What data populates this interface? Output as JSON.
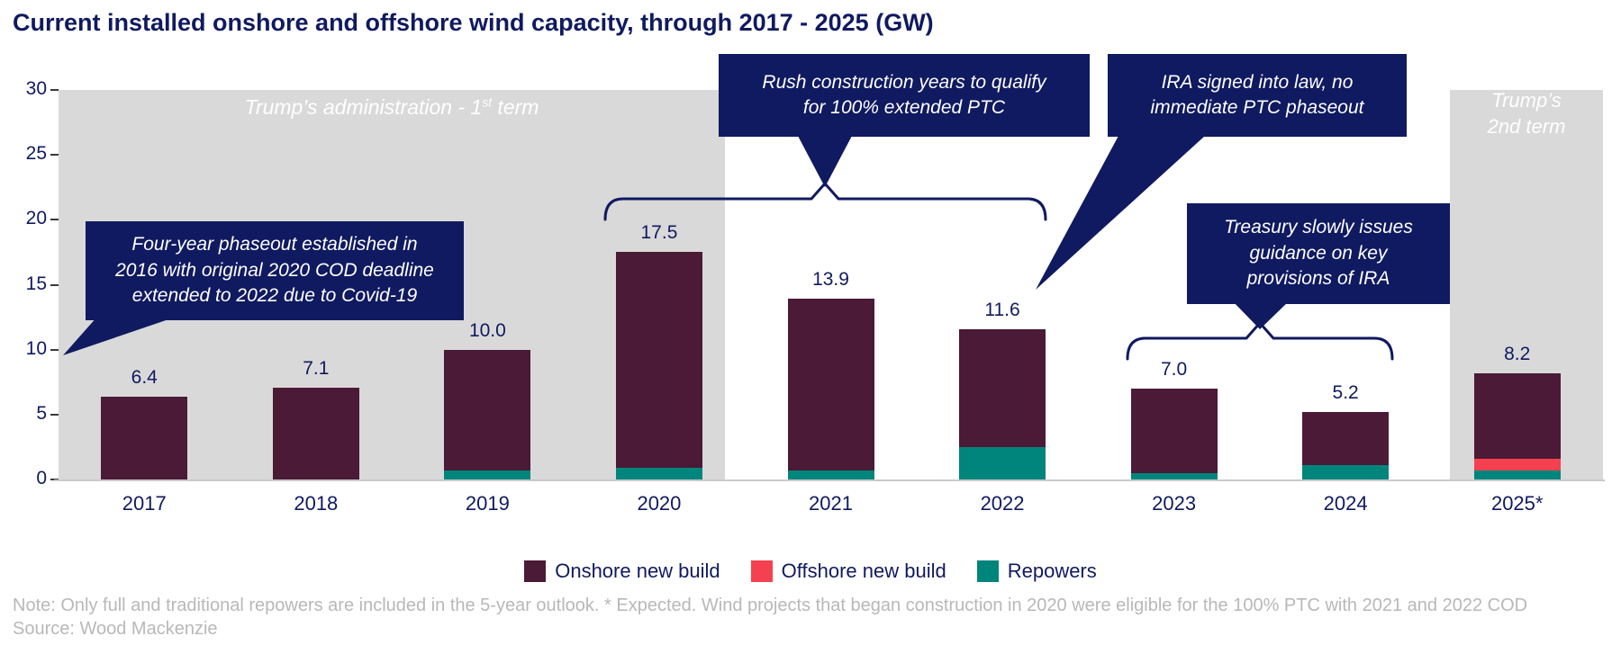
{
  "title": "Current installed onshore and offshore wind capacity, through 2017 - 2025 (GW)",
  "colors": {
    "navy": "#101a60",
    "onshore": "#4b1a36",
    "offshore": "#f5414f",
    "repowers": "#00857c",
    "band_gray": "#d9d9d9",
    "note_gray": "#b8b8b8",
    "baseline_gray": "#c9c9c9"
  },
  "bands": {
    "first_term": {
      "pre": "Trump’s administration - 1",
      "sup": "st",
      "post": " term"
    },
    "second_term": {
      "lines": [
        "Trump’s",
        "2nd term"
      ]
    }
  },
  "annotations": {
    "phaseout": {
      "lines": [
        "Four-year phaseout established in",
        "2016 with original 2020 COD deadline",
        "extended to 2022 due to Covid-19"
      ]
    },
    "rush": {
      "lines": [
        "Rush construction years to qualify",
        "for  100% extended PTC"
      ]
    },
    "ira": {
      "lines": [
        "IRA signed into law, no",
        "immediate PTC phaseout"
      ]
    },
    "treasury": {
      "lines": [
        "Treasury slowly issues",
        "guidance on key",
        "provisions of IRA"
      ]
    }
  },
  "chart_data": {
    "type": "bar",
    "stacked": true,
    "title": "Current installed onshore and offshore wind capacity, through 2017 - 2025 (GW)",
    "categories": [
      "2017",
      "2018",
      "2019",
      "2020",
      "2021",
      "2022",
      "2023",
      "2024",
      "2025*"
    ],
    "series": [
      {
        "name": "Repowers",
        "color": "#00857c",
        "values": [
          0,
          0,
          0.7,
          0.9,
          0.7,
          2.5,
          0.5,
          1.1,
          0.7
        ]
      },
      {
        "name": "Offshore new build",
        "color": "#f5414f",
        "values": [
          0,
          0,
          0,
          0,
          0,
          0,
          0,
          0,
          0.9
        ]
      },
      {
        "name": "Onshore new build",
        "color": "#4b1a36",
        "values": [
          6.4,
          7.1,
          9.3,
          16.6,
          13.2,
          9.1,
          6.5,
          4.1,
          6.6
        ]
      }
    ],
    "stack_note": "series listed bottom-to-top",
    "totals": [
      6.4,
      7.1,
      10.0,
      17.5,
      13.9,
      11.6,
      7.0,
      5.2,
      8.2
    ],
    "legend_order": [
      "Onshore new build",
      "Offshore new build",
      "Repowers"
    ],
    "ylim": [
      0,
      30
    ],
    "yticks": [
      0,
      5,
      10,
      15,
      20,
      25,
      30
    ],
    "xlabel": "",
    "ylabel": "",
    "grid": false,
    "legend_position": "bottom-center"
  },
  "footnote": {
    "note": "Note: Only full and traditional repowers are included in the 5-year outlook. * Expected. Wind projects that began construction in 2020 were eligible for the 100% PTC with 2021 and 2022 COD",
    "source": "Source: Wood Mackenzie"
  }
}
